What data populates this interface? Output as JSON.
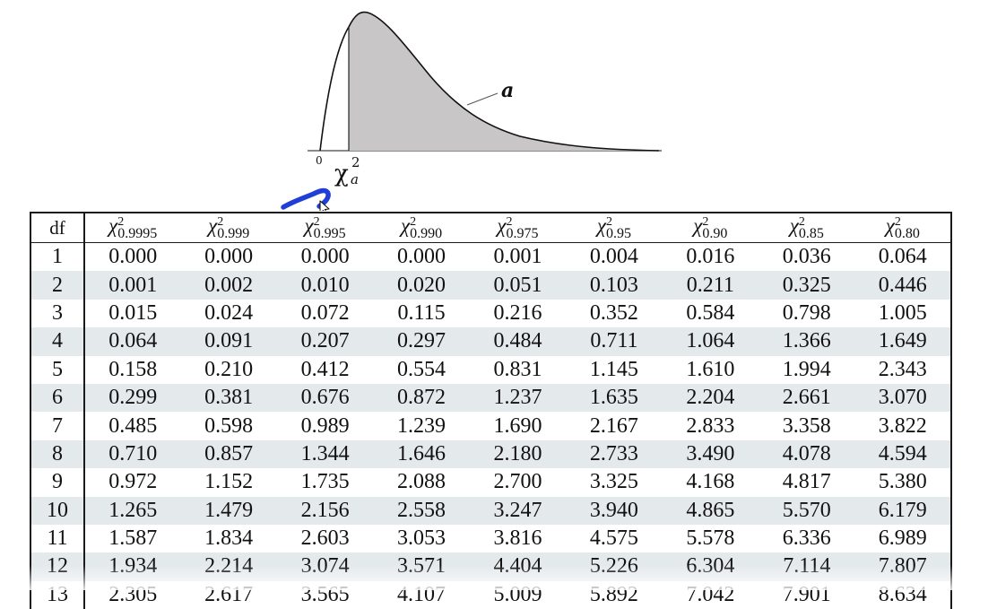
{
  "figure": {
    "zero_label": "0",
    "chi_symbol": "χ",
    "chi_superscript": "2",
    "chi_subscript": "a",
    "area_label": "a"
  },
  "table": {
    "df_header": "df",
    "columns": [
      {
        "symbol": "χ",
        "sup": "2",
        "sub": "0.9995"
      },
      {
        "symbol": "χ",
        "sup": "2",
        "sub": "0.999"
      },
      {
        "symbol": "χ",
        "sup": "2",
        "sub": "0.995"
      },
      {
        "symbol": "χ",
        "sup": "2",
        "sub": "0.990"
      },
      {
        "symbol": "χ",
        "sup": "2",
        "sub": "0.975"
      },
      {
        "symbol": "χ",
        "sup": "2",
        "sub": "0.95"
      },
      {
        "symbol": "χ",
        "sup": "2",
        "sub": "0.90"
      },
      {
        "symbol": "χ",
        "sup": "2",
        "sub": "0.85"
      },
      {
        "symbol": "χ",
        "sup": "2",
        "sub": "0.80"
      }
    ],
    "rows": [
      {
        "df": "1",
        "values": [
          "0.000",
          "0.000",
          "0.000",
          "0.000",
          "0.001",
          "0.004",
          "0.016",
          "0.036",
          "0.064"
        ]
      },
      {
        "df": "2",
        "values": [
          "0.001",
          "0.002",
          "0.010",
          "0.020",
          "0.051",
          "0.103",
          "0.211",
          "0.325",
          "0.446"
        ]
      },
      {
        "df": "3",
        "values": [
          "0.015",
          "0.024",
          "0.072",
          "0.115",
          "0.216",
          "0.352",
          "0.584",
          "0.798",
          "1.005"
        ]
      },
      {
        "df": "4",
        "values": [
          "0.064",
          "0.091",
          "0.207",
          "0.297",
          "0.484",
          "0.711",
          "1.064",
          "1.366",
          "1.649"
        ]
      },
      {
        "df": "5",
        "values": [
          "0.158",
          "0.210",
          "0.412",
          "0.554",
          "0.831",
          "1.145",
          "1.610",
          "1.994",
          "2.343"
        ]
      },
      {
        "df": "6",
        "values": [
          "0.299",
          "0.381",
          "0.676",
          "0.872",
          "1.237",
          "1.635",
          "2.204",
          "2.661",
          "3.070"
        ]
      },
      {
        "df": "7",
        "values": [
          "0.485",
          "0.598",
          "0.989",
          "1.239",
          "1.690",
          "2.167",
          "2.833",
          "3.358",
          "3.822"
        ]
      },
      {
        "df": "8",
        "values": [
          "0.710",
          "0.857",
          "1.344",
          "1.646",
          "2.180",
          "2.733",
          "3.490",
          "4.078",
          "4.594"
        ]
      },
      {
        "df": "9",
        "values": [
          "0.972",
          "1.152",
          "1.735",
          "2.088",
          "2.700",
          "3.325",
          "4.168",
          "4.817",
          "5.380"
        ]
      },
      {
        "df": "10",
        "values": [
          "1.265",
          "1.479",
          "2.156",
          "2.558",
          "3.247",
          "3.940",
          "4.865",
          "5.570",
          "6.179"
        ]
      },
      {
        "df": "11",
        "values": [
          "1.587",
          "1.834",
          "2.603",
          "3.053",
          "3.816",
          "4.575",
          "5.578",
          "6.336",
          "6.989"
        ]
      },
      {
        "df": "12",
        "values": [
          "1.934",
          "2.214",
          "3.074",
          "3.571",
          "4.404",
          "5.226",
          "6.304",
          "7.114",
          "7.807"
        ]
      },
      {
        "df": "13",
        "values": [
          "2.305",
          "2.617",
          "3.565",
          "4.107",
          "5.009",
          "5.892",
          "7.042",
          "7.901",
          "8.634"
        ]
      }
    ]
  },
  "colors": {
    "shaded_area": "#c9c6c7",
    "stripe": "#e4e9ec",
    "annotation_pen": "#1f3fd6"
  }
}
